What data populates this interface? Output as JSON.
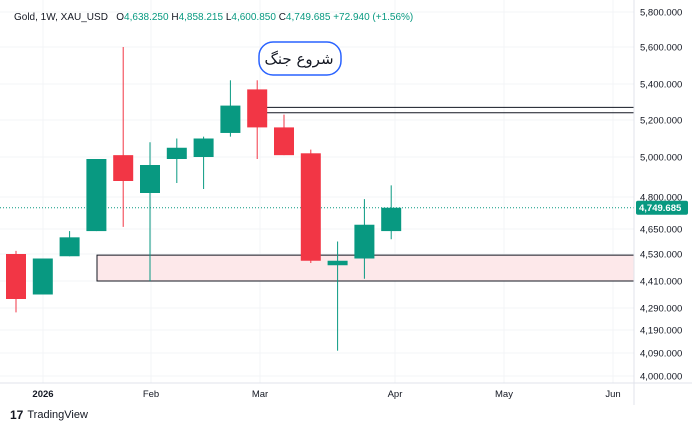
{
  "header": {
    "symbol": "Gold, 1W, XAU_USD",
    "o_label": "O",
    "o": "4,638.250",
    "h_label": "H",
    "h": "4,858.215",
    "l_label": "L",
    "l": "4,600.850",
    "c_label": "C",
    "c": "4,749.685",
    "change": "+72.940 (+1.56%)"
  },
  "annotation": "شروع جنگ",
  "footer": {
    "brand": "TradingView",
    "logo_mark": "17"
  },
  "colors": {
    "up": "#089981",
    "down": "#f23645",
    "zone_fill": "#fde8ea",
    "line": "#131722",
    "current_line": "#089981"
  },
  "chart_data": {
    "type": "candlestick",
    "instrument": "XAU_USD",
    "timeframe": "1W",
    "x_ticks": [
      "2026",
      "Feb",
      "Mar",
      "Apr",
      "May",
      "Jun"
    ],
    "y_ticks": [
      "5,800.000",
      "5,600.000",
      "5,400.000",
      "5,200.000",
      "5,000.000",
      "4,800.000",
      "4,650.000",
      "4,530.000",
      "4,410.000",
      "4,290.000",
      "4,190.000",
      "4,090.000",
      "4,000.000"
    ],
    "current_price": "4,749.685",
    "candles": [
      {
        "o": 4530,
        "h": 4545,
        "l": 4270,
        "c": 4330
      },
      {
        "o": 4350,
        "h": 4510,
        "l": 4350,
        "c": 4510
      },
      {
        "o": 4520,
        "h": 4640,
        "l": 4520,
        "c": 4610
      },
      {
        "o": 4640,
        "h": 4990,
        "l": 4640,
        "c": 4990
      },
      {
        "o": 5010,
        "h": 5600,
        "l": 4660,
        "c": 4880
      },
      {
        "o": 4820,
        "h": 5080,
        "l": 4410,
        "c": 4960
      },
      {
        "o": 4990,
        "h": 5100,
        "l": 4870,
        "c": 5050
      },
      {
        "o": 5000,
        "h": 5110,
        "l": 4840,
        "c": 5100
      },
      {
        "o": 5130,
        "h": 5420,
        "l": 5110,
        "c": 5280
      },
      {
        "o": 5370,
        "h": 5420,
        "l": 4990,
        "c": 5160
      },
      {
        "o": 5160,
        "h": 5230,
        "l": 5010,
        "c": 5010
      },
      {
        "o": 5020,
        "h": 5040,
        "l": 4490,
        "c": 4500
      },
      {
        "o": 4480,
        "h": 4590,
        "l": 4100,
        "c": 4500
      },
      {
        "o": 4510,
        "h": 4790,
        "l": 4420,
        "c": 4670
      },
      {
        "o": 4640,
        "h": 4858.215,
        "l": 4600.85,
        "c": 4749.685
      }
    ],
    "horizontal_lines": [
      5270,
      5240
    ],
    "support_zone": [
      4410,
      4525
    ],
    "annotations": [
      "شروع جنگ"
    ]
  }
}
